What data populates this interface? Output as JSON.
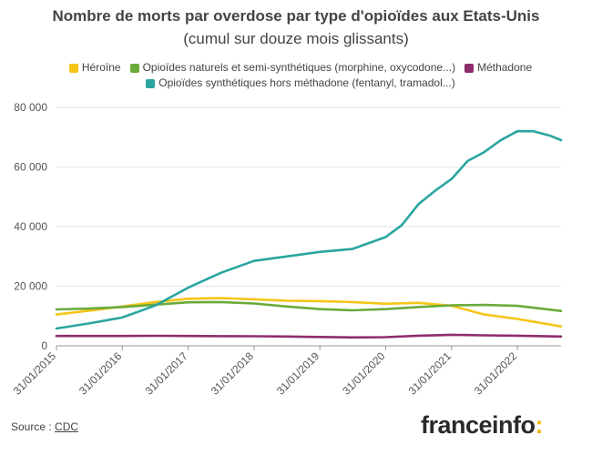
{
  "colors": {
    "heroine": "#f5c518",
    "naturels": "#6aaa3a",
    "methadone": "#8e2d6e",
    "synthetiques": "#2aa5a0",
    "grid": "#e6e6e6",
    "axis": "#999999"
  },
  "chart_data": {
    "type": "line",
    "title": "Nombre de morts par overdose par type d'opioïdes aux Etats-Unis",
    "subtitle": "(cumul sur douze mois glissants)",
    "ylim": [
      0,
      80000
    ],
    "yticks": [
      0,
      20000,
      40000,
      60000,
      80000
    ],
    "ytick_labels": [
      "0",
      "20 000",
      "40 000",
      "60 000",
      "80 000"
    ],
    "xlim": [
      "2015-01-31",
      "2022-09-30"
    ],
    "xtick_labels": [
      "31/01/2015",
      "31/01/2016",
      "31/01/2017",
      "31/01/2018",
      "31/01/2019",
      "31/01/2020",
      "31/01/2021",
      "31/01/2022"
    ],
    "xticks": [
      "2015-01-31",
      "2016-01-31",
      "2017-01-31",
      "2018-01-31",
      "2019-01-31",
      "2020-01-31",
      "2021-01-31",
      "2022-01-31"
    ],
    "grid": true,
    "legend_position": "top",
    "series": [
      {
        "name": "Héroïne",
        "color_key": "heroine",
        "points": [
          [
            "2015-01-31",
            10500
          ],
          [
            "2015-07-31",
            11800
          ],
          [
            "2016-01-31",
            13200
          ],
          [
            "2016-07-31",
            14700
          ],
          [
            "2017-01-31",
            15800
          ],
          [
            "2017-07-31",
            16000
          ],
          [
            "2018-01-31",
            15600
          ],
          [
            "2018-07-31",
            15100
          ],
          [
            "2019-01-31",
            15000
          ],
          [
            "2019-07-31",
            14700
          ],
          [
            "2020-01-31",
            14100
          ],
          [
            "2020-07-31",
            14400
          ],
          [
            "2021-01-31",
            13400
          ],
          [
            "2021-07-31",
            10500
          ],
          [
            "2022-01-31",
            9000
          ],
          [
            "2022-09-30",
            6500
          ]
        ]
      },
      {
        "name": "Opioïdes naturels et semi-synthétiques (morphine, oxycodone...)",
        "color_key": "naturels",
        "points": [
          [
            "2015-01-31",
            12200
          ],
          [
            "2015-07-31",
            12500
          ],
          [
            "2016-01-31",
            13000
          ],
          [
            "2016-07-31",
            13800
          ],
          [
            "2017-01-31",
            14600
          ],
          [
            "2017-07-31",
            14700
          ],
          [
            "2018-01-31",
            14200
          ],
          [
            "2018-07-31",
            13200
          ],
          [
            "2019-01-31",
            12300
          ],
          [
            "2019-07-31",
            11900
          ],
          [
            "2020-01-31",
            12300
          ],
          [
            "2020-07-31",
            13000
          ],
          [
            "2021-01-31",
            13600
          ],
          [
            "2021-07-31",
            13700
          ],
          [
            "2022-01-31",
            13400
          ],
          [
            "2022-09-30",
            11700
          ]
        ]
      },
      {
        "name": "Méthadone",
        "color_key": "methadone",
        "points": [
          [
            "2015-01-31",
            3300
          ],
          [
            "2015-07-31",
            3300
          ],
          [
            "2016-01-31",
            3300
          ],
          [
            "2016-07-31",
            3350
          ],
          [
            "2017-01-31",
            3300
          ],
          [
            "2017-07-31",
            3250
          ],
          [
            "2018-01-31",
            3200
          ],
          [
            "2018-07-31",
            3100
          ],
          [
            "2019-01-31",
            2950
          ],
          [
            "2019-07-31",
            2800
          ],
          [
            "2020-01-31",
            2900
          ],
          [
            "2020-07-31",
            3400
          ],
          [
            "2021-01-31",
            3700
          ],
          [
            "2021-07-31",
            3500
          ],
          [
            "2022-01-31",
            3400
          ],
          [
            "2022-09-30",
            3100
          ]
        ]
      },
      {
        "name": "Opioïdes synthétiques hors méthadone (fentanyl, tramadol...)",
        "color_key": "synthetiques",
        "points": [
          [
            "2015-01-31",
            5800
          ],
          [
            "2015-07-31",
            7500
          ],
          [
            "2016-01-31",
            9500
          ],
          [
            "2016-07-31",
            13500
          ],
          [
            "2017-01-31",
            19500
          ],
          [
            "2017-07-31",
            24500
          ],
          [
            "2018-01-31",
            28500
          ],
          [
            "2018-07-31",
            30000
          ],
          [
            "2019-01-31",
            31500
          ],
          [
            "2019-07-31",
            32500
          ],
          [
            "2020-01-31",
            36500
          ],
          [
            "2020-04-30",
            40500
          ],
          [
            "2020-07-31",
            47500
          ],
          [
            "2020-10-31",
            52000
          ],
          [
            "2021-01-31",
            56000
          ],
          [
            "2021-04-30",
            62000
          ],
          [
            "2021-07-31",
            65000
          ],
          [
            "2021-10-31",
            69000
          ],
          [
            "2022-01-31",
            72000
          ],
          [
            "2022-04-30",
            72000
          ],
          [
            "2022-07-31",
            70500
          ],
          [
            "2022-09-30",
            69000
          ]
        ]
      }
    ]
  },
  "legend": {
    "heroine": "Héroïne",
    "naturels": "Opioïdes naturels et semi-synthétiques (morphine, oxycodone...)",
    "methadone": "Méthadone",
    "synthetiques": "Opioïdes synthétiques hors méthadone (fentanyl, tramadol...)"
  },
  "footer": {
    "source_prefix": "Source : ",
    "source_link": "CDC",
    "logo_text": "franceinfo",
    "logo_colon": ":"
  }
}
